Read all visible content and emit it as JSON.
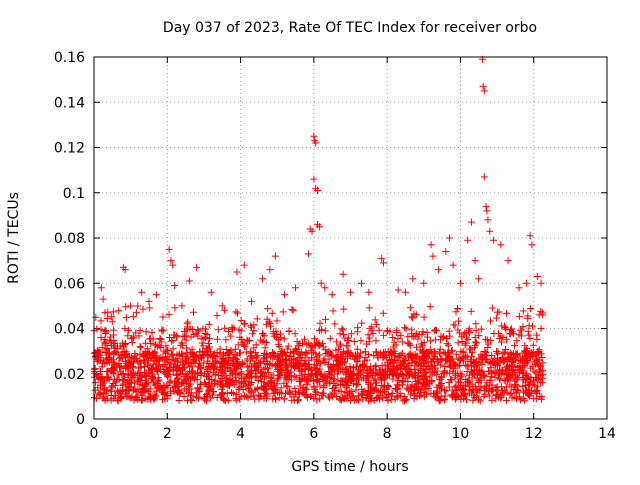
{
  "chart_data": {
    "type": "scatter",
    "title": "Day 037 of 2023, Rate Of TEC Index for receiver orbo",
    "xlabel": "GPS time / hours",
    "ylabel": "ROTI / TECUs",
    "xlim": [
      0,
      14
    ],
    "ylim": [
      0,
      0.16
    ],
    "x_ticks": [
      0,
      2,
      4,
      6,
      8,
      10,
      12,
      14
    ],
    "x_tick_labels": [
      "0",
      "2",
      "4",
      "6",
      "8",
      "10",
      "12",
      "14"
    ],
    "y_ticks": [
      0,
      0.02,
      0.04,
      0.06,
      0.08,
      0.1,
      0.12,
      0.14,
      0.16
    ],
    "y_tick_labels": [
      "0",
      "0.02",
      "0.04",
      "0.06",
      "0.08",
      "0.1",
      "0.12",
      "0.14",
      "0.16"
    ],
    "grid": true,
    "marker": "+",
    "color": "#ff0000",
    "data_x_range": [
      0,
      12.25
    ],
    "series": [
      {
        "points": [
          [
            0.05,
            0.045
          ],
          [
            0.1,
            0.03
          ],
          [
            0.2,
            0.058
          ],
          [
            0.25,
            0.053
          ],
          [
            0.3,
            0.047
          ],
          [
            0.5,
            0.043
          ],
          [
            0.8,
            0.067
          ],
          [
            0.85,
            0.066
          ],
          [
            1.0,
            0.05
          ],
          [
            1.3,
            0.056
          ],
          [
            1.5,
            0.052
          ],
          [
            1.7,
            0.055
          ],
          [
            2.05,
            0.075
          ],
          [
            2.1,
            0.07
          ],
          [
            2.15,
            0.068
          ],
          [
            2.2,
            0.059
          ],
          [
            2.4,
            0.05
          ],
          [
            2.6,
            0.061
          ],
          [
            2.8,
            0.067
          ],
          [
            3.2,
            0.056
          ],
          [
            3.5,
            0.05
          ],
          [
            3.9,
            0.065
          ],
          [
            4.1,
            0.068
          ],
          [
            4.3,
            0.052
          ],
          [
            4.6,
            0.062
          ],
          [
            4.8,
            0.066
          ],
          [
            4.95,
            0.072
          ],
          [
            5.2,
            0.055
          ],
          [
            5.5,
            0.058
          ],
          [
            5.85,
            0.073
          ],
          [
            5.9,
            0.084
          ],
          [
            5.95,
            0.083
          ],
          [
            6.0,
            0.125
          ],
          [
            6.02,
            0.123
          ],
          [
            6.05,
            0.122
          ],
          [
            6.0,
            0.106
          ],
          [
            6.05,
            0.102
          ],
          [
            6.1,
            0.101
          ],
          [
            6.1,
            0.086
          ],
          [
            6.15,
            0.085
          ],
          [
            6.2,
            0.06
          ],
          [
            6.3,
            0.058
          ],
          [
            6.5,
            0.055
          ],
          [
            6.8,
            0.064
          ],
          [
            7.0,
            0.056
          ],
          [
            7.3,
            0.06
          ],
          [
            7.5,
            0.056
          ],
          [
            7.85,
            0.071
          ],
          [
            7.9,
            0.069
          ],
          [
            8.3,
            0.057
          ],
          [
            8.5,
            0.056
          ],
          [
            8.7,
            0.062
          ],
          [
            9.0,
            0.06
          ],
          [
            9.2,
            0.077
          ],
          [
            9.25,
            0.072
          ],
          [
            9.4,
            0.066
          ],
          [
            9.6,
            0.074
          ],
          [
            9.7,
            0.08
          ],
          [
            9.8,
            0.068
          ],
          [
            10.0,
            0.06
          ],
          [
            10.2,
            0.079
          ],
          [
            10.3,
            0.087
          ],
          [
            10.4,
            0.07
          ],
          [
            10.5,
            0.062
          ],
          [
            10.6,
            0.159
          ],
          [
            10.62,
            0.147
          ],
          [
            10.65,
            0.145
          ],
          [
            10.65,
            0.107
          ],
          [
            10.7,
            0.094
          ],
          [
            10.72,
            0.092
          ],
          [
            10.75,
            0.088
          ],
          [
            10.8,
            0.083
          ],
          [
            10.9,
            0.079
          ],
          [
            11.1,
            0.077
          ],
          [
            11.3,
            0.07
          ],
          [
            11.6,
            0.058
          ],
          [
            11.8,
            0.06
          ],
          [
            11.9,
            0.081
          ],
          [
            11.95,
            0.077
          ],
          [
            12.1,
            0.063
          ],
          [
            12.2,
            0.06
          ],
          [
            12.15,
            0.046
          ],
          [
            12.2,
            0.04
          ]
        ]
      }
    ]
  }
}
